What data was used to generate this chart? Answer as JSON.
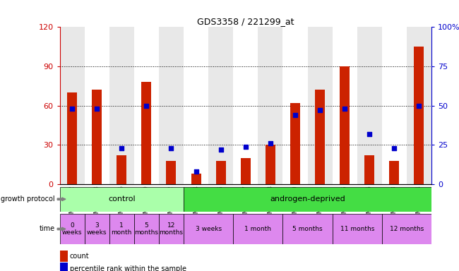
{
  "title": "GDS3358 / 221299_at",
  "samples": [
    "GSM215632",
    "GSM215633",
    "GSM215636",
    "GSM215639",
    "GSM215642",
    "GSM215634",
    "GSM215635",
    "GSM215637",
    "GSM215638",
    "GSM215640",
    "GSM215641",
    "GSM215645",
    "GSM215646",
    "GSM215643",
    "GSM215644"
  ],
  "count_values": [
    70,
    72,
    22,
    78,
    18,
    8,
    18,
    20,
    30,
    62,
    72,
    90,
    22,
    18,
    105
  ],
  "percentile_values": [
    48,
    48,
    23,
    50,
    23,
    8,
    22,
    24,
    26,
    44,
    47,
    48,
    32,
    23,
    50
  ],
  "ylim_left": [
    0,
    120
  ],
  "ylim_right": [
    0,
    100
  ],
  "yticks_left": [
    0,
    30,
    60,
    90,
    120
  ],
  "yticks_right": [
    0,
    25,
    50,
    75,
    100
  ],
  "bar_color_red": "#cc2200",
  "bar_color_blue": "#0000cc",
  "tick_label_color_left": "#cc0000",
  "tick_label_color_right": "#0000cc",
  "col_bg_even": "#e8e8e8",
  "col_bg_odd": "#ffffff",
  "control_count": 5,
  "total_count": 15,
  "protocol_groups": [
    {
      "text": "control",
      "span": [
        0,
        5
      ],
      "color": "#aaffaa"
    },
    {
      "text": "androgen-deprived",
      "span": [
        5,
        15
      ],
      "color": "#44dd44"
    }
  ],
  "time_cells": [
    {
      "text": "0\nweeks",
      "span": [
        0,
        1
      ]
    },
    {
      "text": "3\nweeks",
      "span": [
        1,
        2
      ]
    },
    {
      "text": "1\nmonth",
      "span": [
        2,
        3
      ]
    },
    {
      "text": "5\nmonths",
      "span": [
        3,
        4
      ]
    },
    {
      "text": "12\nmonths",
      "span": [
        4,
        5
      ]
    },
    {
      "text": "3 weeks",
      "span": [
        5,
        7
      ]
    },
    {
      "text": "1 month",
      "span": [
        7,
        9
      ]
    },
    {
      "text": "5 months",
      "span": [
        9,
        11
      ]
    },
    {
      "text": "11 months",
      "span": [
        11,
        13
      ]
    },
    {
      "text": "12 months",
      "span": [
        13,
        15
      ]
    }
  ],
  "time_color": "#dd88ee",
  "legend_items": [
    {
      "color": "#cc2200",
      "label": "count"
    },
    {
      "color": "#0000cc",
      "label": "percentile rank within the sample"
    }
  ]
}
